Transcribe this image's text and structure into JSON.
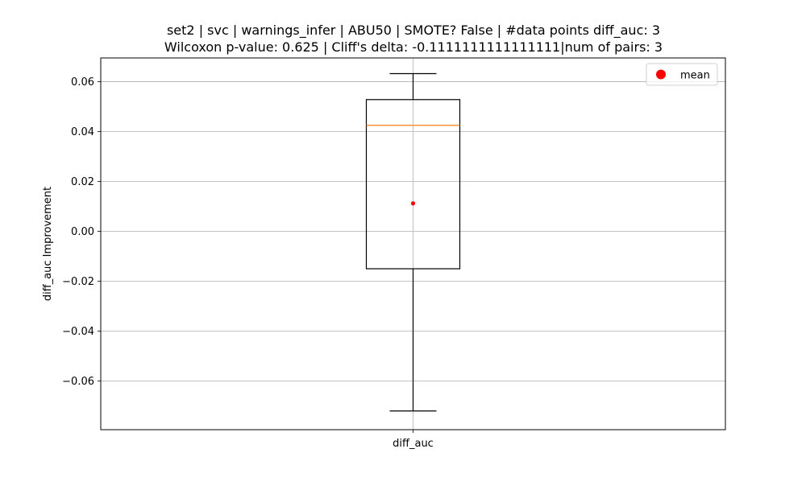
{
  "chart_data": {
    "type": "box",
    "title_lines": [
      "set2 | svc | warnings_infer | ABU50 | SMOTE? False | #data points diff_auc: 3",
      "Wilcoxon p-value: 0.625 | Cliff's delta: -0.1111111111111111|num of pairs: 3"
    ],
    "xlabel": "",
    "ylabel": "diff_auc Improvement",
    "categories": [
      "diff_auc"
    ],
    "ylim": [
      -0.0795,
      0.0695
    ],
    "yticks": [
      -0.06,
      -0.04,
      -0.02,
      0.0,
      0.02,
      0.04,
      0.06
    ],
    "ytick_labels": [
      "−0.06",
      "−0.04",
      "−0.02",
      "0.00",
      "0.02",
      "0.04",
      "0.06"
    ],
    "grid": true,
    "legend": {
      "position": "top-right",
      "entries": [
        {
          "label": "mean",
          "color": "#ff0000"
        }
      ]
    },
    "boxes": [
      {
        "name": "diff_auc",
        "whisker_low": -0.072,
        "q1": -0.015,
        "median": 0.0425,
        "q3": 0.0528,
        "whisker_high": 0.0632,
        "mean": 0.0112
      }
    ],
    "colors": {
      "box": "#000000",
      "median": "#ff7f0e",
      "mean": "#ff0000",
      "grid": "#b0b0b0"
    }
  }
}
